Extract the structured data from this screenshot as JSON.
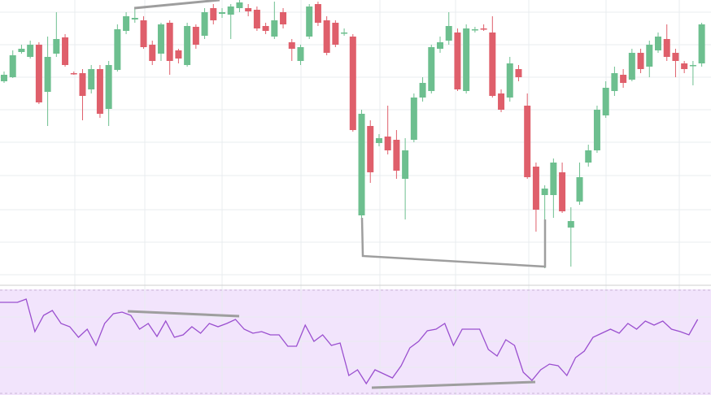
{
  "chart_data": [
    {
      "type": "candlestick",
      "ylim": [
        0,
        350
      ],
      "up_color": "#6dbf8f",
      "down_color": "#df5f6b",
      "open": [
        250,
        255,
        286,
        280,
        295,
        237,
        284,
        304,
        260,
        260,
        240,
        265,
        216,
        264,
        312,
        326,
        325,
        295,
        284,
        322,
        288,
        270,
        317,
        306,
        340,
        333,
        332,
        340,
        340,
        338,
        318,
        305,
        335,
        298,
        275,
        305,
        345,
        325,
        322,
        310,
        305,
        85,
        195,
        174,
        182,
        178,
        130,
        178,
        230,
        238,
        290,
        300,
        310,
        238,
        314,
        315,
        310,
        235,
        230,
        265,
        220,
        145,
        110,
        110,
        138,
        70,
        102,
        150,
        165,
        208,
        238,
        258,
        252,
        285,
        268,
        288,
        302,
        285,
        272,
        270,
        272
      ],
      "high": [
        262,
        288,
        295,
        300,
        298,
        305,
        335,
        308,
        262,
        265,
        270,
        270,
        275,
        320,
        335,
        340,
        330,
        300,
        322,
        325,
        290,
        322,
        320,
        340,
        345,
        340,
        345,
        350,
        345,
        342,
        322,
        348,
        340,
        302,
        295,
        345,
        348,
        330,
        325,
        315,
        308,
        215,
        202,
        185,
        220,
        190,
        180,
        235,
        255,
        295,
        305,
        335,
        315,
        320,
        317,
        320,
        330,
        240,
        280,
        270,
        235,
        150,
        122,
        155,
        150,
        95,
        150,
        172,
        220,
        250,
        268,
        265,
        290,
        290,
        300,
        310,
        320,
        290,
        275,
        275,
        322
      ],
      "low": [
        248,
        254,
        284,
        278,
        222,
        195,
        280,
        268,
        258,
        202,
        235,
        205,
        195,
        262,
        308,
        322,
        290,
        270,
        275,
        258,
        272,
        268,
        290,
        302,
        320,
        328,
        302,
        335,
        330,
        312,
        308,
        302,
        315,
        275,
        270,
        302,
        318,
        282,
        292,
        306,
        188,
        82,
        125,
        170,
        160,
        130,
        80,
        175,
        225,
        235,
        285,
        295,
        238,
        235,
        310,
        312,
        230,
        212,
        225,
        250,
        130,
        65,
        20,
        82,
        88,
        22,
        98,
        145,
        162,
        205,
        232,
        242,
        250,
        260,
        255,
        285,
        275,
        255,
        260,
        245,
        268
      ],
      "close": [
        258,
        282,
        290,
        295,
        224,
        280,
        302,
        270,
        259,
        232,
        265,
        210,
        270,
        314,
        330,
        328,
        292,
        275,
        320,
        275,
        278,
        318,
        295,
        335,
        325,
        335,
        342,
        347,
        336,
        315,
        312,
        325,
        320,
        290,
        292,
        342,
        322,
        285,
        295,
        310,
        190,
        210,
        138,
        180,
        165,
        140,
        165,
        230,
        248,
        292,
        298,
        318,
        240,
        315,
        314,
        314,
        232,
        215,
        272,
        255,
        132,
        92,
        118,
        150,
        90,
        78,
        132,
        165,
        215,
        242,
        260,
        248,
        285,
        265,
        295,
        305,
        280,
        275,
        265,
        270,
        320
      ]
    },
    {
      "type": "line",
      "ylim": [
        0,
        130
      ],
      "color": "#9a4fcf",
      "band_color": "#f2e4fc",
      "values": [
        114,
        114,
        114,
        118,
        78,
        98,
        104,
        88,
        84,
        71,
        81,
        61,
        88,
        100,
        102,
        98,
        81,
        88,
        72,
        91,
        71,
        74,
        84,
        76,
        88,
        84,
        88,
        93,
        81,
        76,
        78,
        74,
        74,
        60,
        60,
        86,
        66,
        74,
        61,
        64,
        24,
        31,
        14,
        31,
        26,
        21,
        36,
        58,
        66,
        79,
        81,
        88,
        61,
        81,
        81,
        81,
        56,
        48,
        68,
        61,
        28,
        18,
        31,
        38,
        36,
        24,
        46,
        54,
        71,
        76,
        81,
        76,
        88,
        81,
        91,
        86,
        91,
        81,
        78,
        74,
        93
      ]
    }
  ]
}
